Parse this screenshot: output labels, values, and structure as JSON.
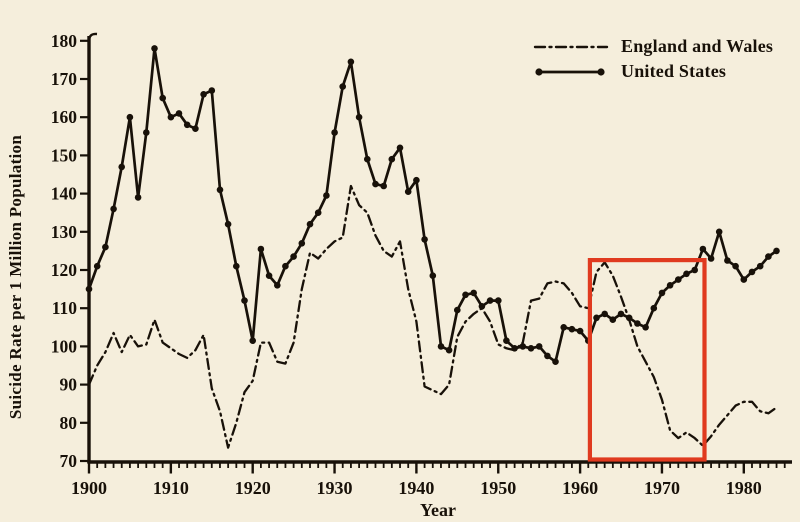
{
  "figure": {
    "background_color": "#f5eedc",
    "ink_color": "#181109",
    "highlight_color": "#e03a1f"
  },
  "legend": {
    "position": "top-right",
    "items": [
      {
        "label": "England and Wales",
        "line_style": "dash-dot"
      },
      {
        "label": "United States",
        "line_style": "solid-with-dots"
      }
    ]
  },
  "chart_data": {
    "type": "line",
    "title": "",
    "x_label": "Year",
    "y_label": "Suicide Rate per 1 Million Population",
    "xlim": [
      1900,
      1985
    ],
    "ylim": [
      70,
      180
    ],
    "grid": false,
    "x_ticks_major": [
      1900,
      1910,
      1920,
      1930,
      1940,
      1950,
      1960,
      1970,
      1980
    ],
    "x_ticks_minor_step": 1,
    "y_ticks": [
      70,
      80,
      90,
      100,
      110,
      120,
      130,
      140,
      150,
      160,
      170,
      180
    ],
    "x": [
      1900,
      1901,
      1902,
      1903,
      1904,
      1905,
      1906,
      1907,
      1908,
      1909,
      1910,
      1911,
      1912,
      1913,
      1914,
      1915,
      1916,
      1917,
      1918,
      1919,
      1920,
      1921,
      1922,
      1923,
      1924,
      1925,
      1926,
      1927,
      1928,
      1929,
      1930,
      1931,
      1932,
      1933,
      1934,
      1935,
      1936,
      1937,
      1938,
      1939,
      1940,
      1941,
      1942,
      1943,
      1944,
      1945,
      1946,
      1947,
      1948,
      1949,
      1950,
      1951,
      1952,
      1953,
      1954,
      1955,
      1956,
      1957,
      1958,
      1959,
      1960,
      1961,
      1962,
      1963,
      1964,
      1965,
      1966,
      1967,
      1968,
      1969,
      1970,
      1971,
      1972,
      1973,
      1974,
      1975,
      1976,
      1977,
      1978,
      1979,
      1980,
      1981,
      1982,
      1983,
      1984
    ],
    "series": [
      {
        "name": "England and Wales",
        "line_style": "dash-dot",
        "values": [
          90,
          95,
          98.5,
          103.5,
          98.5,
          103,
          100,
          100.5,
          107,
          101,
          99.5,
          98,
          97,
          99,
          103,
          89,
          83,
          73.5,
          80,
          88,
          91,
          101,
          101,
          96,
          95.5,
          101,
          115,
          124.5,
          123,
          125.5,
          127.5,
          128.5,
          142,
          137,
          135,
          129,
          125,
          123.5,
          127.5,
          115,
          106.5,
          89.5,
          88.5,
          87.5,
          90,
          102.5,
          106.5,
          108.5,
          110,
          106.5,
          100.5,
          99.5,
          99,
          101,
          112,
          112.5,
          116.5,
          117,
          116.5,
          114,
          110.5,
          110,
          119.5,
          122,
          118.5,
          113,
          107,
          100,
          96,
          92,
          86,
          78,
          76,
          77.5,
          76,
          74,
          76.5,
          79.5,
          82,
          84.5,
          85.5,
          85.5,
          83,
          82.5,
          84
        ]
      },
      {
        "name": "United States",
        "line_style": "solid-with-dots",
        "values": [
          115,
          121,
          126,
          136,
          147,
          160,
          139,
          156,
          178,
          165,
          160,
          161,
          158,
          157,
          166,
          167,
          141,
          132,
          121,
          112,
          101.5,
          125.5,
          118.5,
          116,
          121,
          123.5,
          127,
          132,
          135,
          139.5,
          156,
          168,
          174.5,
          160,
          149,
          142.5,
          142,
          149,
          152,
          140.5,
          143.5,
          128,
          118.5,
          100,
          99,
          109.5,
          113.5,
          114,
          110.5,
          112,
          112,
          101.5,
          99.5,
          100,
          99.5,
          100,
          97.5,
          96,
          105,
          104.5,
          104,
          101.5,
          107.5,
          108.5,
          107,
          108.5,
          107.5,
          106,
          105,
          110,
          114,
          116,
          117.5,
          119,
          120,
          125.5,
          123,
          130,
          122.5,
          121,
          117.5,
          119.5,
          121,
          123.5,
          125
        ]
      }
    ],
    "annotation_box": {
      "x_start": 1961.2,
      "x_end": 1975.2,
      "y_bottom": 70.4,
      "y_top": 122.6,
      "color": "#e03a1f"
    }
  }
}
